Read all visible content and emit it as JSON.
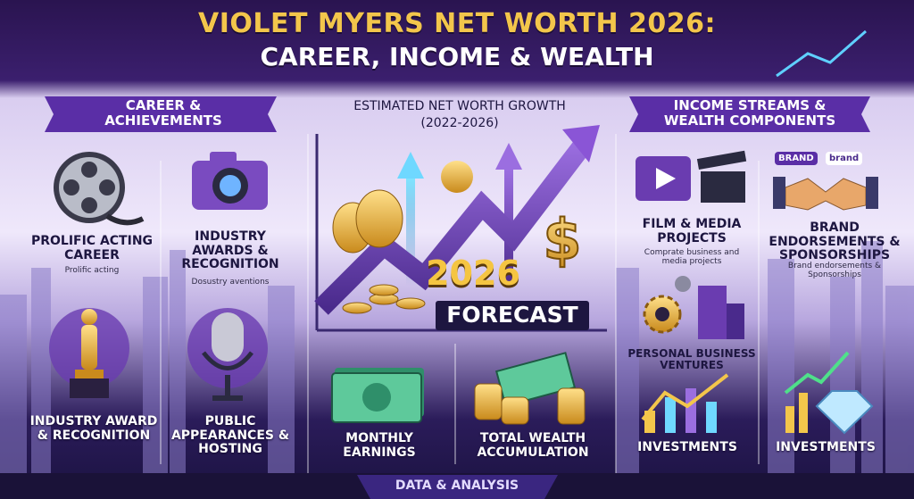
{
  "header": {
    "title": "VIOLET MYERS NET WORTH 2026:",
    "subtitle": "CAREER, INCOME & WEALTH"
  },
  "career": {
    "heading": "CAREER & ACHIEVEMENTS",
    "items": [
      {
        "title": "PROLIFIC ACTING CAREER",
        "caption": "Prolific acting"
      },
      {
        "title": "INDUSTRY AWARDS & RECOGNITION",
        "caption": "Dosustry aventions"
      },
      {
        "title": "INDUSTRY AWARD & RECOGNITION"
      },
      {
        "title": "PUBLIC APPEARANCES & HOSTING"
      }
    ]
  },
  "growth": {
    "heading": "ESTIMATED NET WORTH GROWTH",
    "period": "(2022-2026)",
    "badge_year": "2026",
    "badge_label": "FORECAST",
    "items": [
      "MONTHLY EARNINGS",
      "TOTAL WEALTH ACCUMULATION"
    ]
  },
  "income": {
    "heading": "INCOME STREAMS & WEALTH COMPONENTS",
    "tags": [
      "BRAND",
      "brand"
    ],
    "items": [
      {
        "title": "FILM & MEDIA PROJECTS",
        "caption": "Comprate business and media projects"
      },
      {
        "title": "BRAND ENDORSEMENTS & SPONSORSHIPS",
        "caption": "Brand endorsements & Sponsorships"
      },
      {
        "title": "PERSONAL BUSINESS VENTURES"
      },
      {
        "title": "INVESTMENTS"
      },
      {
        "title": "INVESTMENTS"
      }
    ]
  },
  "footer": {
    "label": "DATA & ANALYSIS"
  }
}
